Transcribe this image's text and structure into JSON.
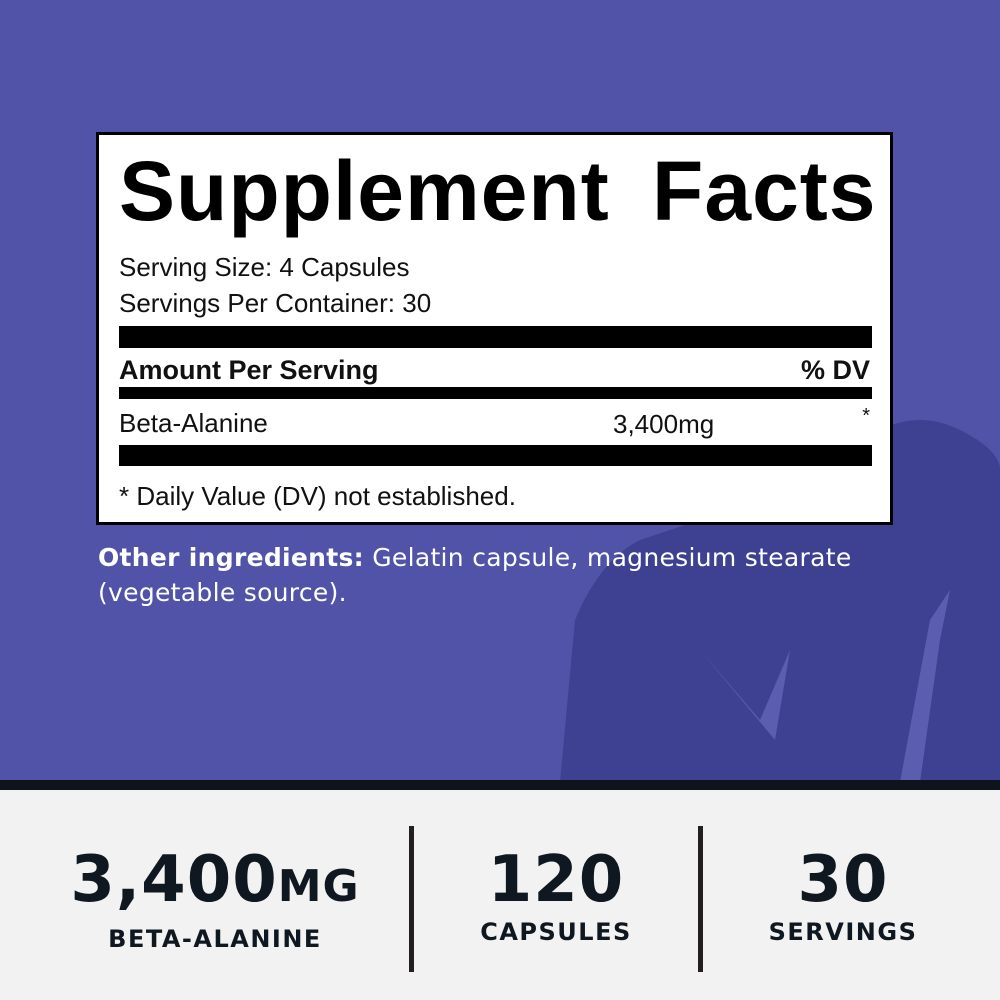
{
  "colors": {
    "background": "#5053a8",
    "silhouette": "#3e4092",
    "stats_band": "#f2f2f2",
    "text_dark": "#0f1820"
  },
  "facts": {
    "title": "Supplement Facts",
    "serving_size": "Serving Size: 4 Capsules",
    "servings_per_container": "Servings Per Container: 30",
    "amount_header": "Amount Per Serving",
    "dv_header": "% DV",
    "rows": [
      {
        "name": "Beta-Alanine",
        "amount": "3,400mg",
        "dv": "*"
      }
    ],
    "footnote": "* Daily Value (DV) not established."
  },
  "other_ingredients": {
    "label": "Other ingredients:",
    "text": " Gelatin capsule, magnesium stearate (vegetable source)."
  },
  "stats": [
    {
      "value": "3,400",
      "unit": "MG",
      "label": "BETA-ALANINE"
    },
    {
      "value": "120",
      "label": "CAPSULES"
    },
    {
      "value": "30",
      "label": "SERVINGS"
    }
  ]
}
